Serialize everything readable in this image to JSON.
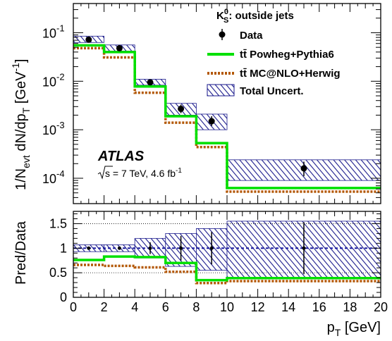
{
  "chart_data": {
    "type": "step",
    "bin_edges": [
      0,
      2,
      4,
      6,
      8,
      10,
      20
    ],
    "x_ticks": [
      0,
      2,
      4,
      6,
      8,
      10,
      12,
      14,
      16,
      18,
      20
    ],
    "xlabel": "p_T [GeV]",
    "xlabel_main": "p",
    "xlabel_sub": "T",
    "xlabel_unit": " [GeV]",
    "main": {
      "ylabel": "1/N_evt dN/dp_T [GeV^-1]",
      "ylabel_parts": {
        "a": "1/N",
        "a_sub": "evt",
        "b": " dN/dp",
        "b_sub": "T",
        "c": " [GeV",
        "c_sup": "-1",
        "d": "]"
      },
      "ylim": [
        3e-05,
        0.4
      ],
      "yscale": "log",
      "y_ticks": [
        {
          "value": 0.1,
          "base": "10",
          "exp": "-1"
        },
        {
          "value": 0.01,
          "base": "10",
          "exp": "-2"
        },
        {
          "value": 0.001,
          "base": "10",
          "exp": "-3"
        },
        {
          "value": 0.0001,
          "base": "10",
          "exp": "-4"
        }
      ],
      "series": [
        {
          "name": "Data",
          "kind": "points",
          "x": [
            1,
            3,
            5,
            7,
            9,
            15
          ],
          "y": [
            0.072,
            0.048,
            0.0095,
            0.0027,
            0.0015,
            0.00016
          ],
          "yerr_low": [
            0.066,
            0.044,
            0.0087,
            0.0022,
            0.0012,
            0.00011
          ],
          "yerr_high": [
            0.078,
            0.052,
            0.0103,
            0.0033,
            0.0019,
            0.00022
          ],
          "color": "#000000"
        },
        {
          "name": "tt Powheg+Pythia6",
          "kind": "step",
          "values": [
            0.055,
            0.04,
            0.0078,
            0.0019,
            0.00053,
            6.3e-05
          ],
          "color": "#00e000"
        },
        {
          "name": "tt MC@NLO+Herwig",
          "kind": "step-dashed",
          "values": [
            0.048,
            0.031,
            0.0058,
            0.0014,
            0.00044,
            5.3e-05
          ],
          "color": "#b35806"
        },
        {
          "name": "Total Uncert.",
          "kind": "band",
          "low": [
            0.063,
            0.042,
            0.0083,
            0.002,
            0.001,
            9e-05
          ],
          "high": [
            0.085,
            0.056,
            0.011,
            0.0035,
            0.0021,
            0.00024
          ],
          "color": "#1a1a8c"
        }
      ]
    },
    "ratio": {
      "ylabel": "Pred/Data",
      "ylim": [
        0,
        1.75
      ],
      "y_ticks": [
        0,
        0.5,
        1,
        1.5
      ],
      "y_tick_labels": [
        "0",
        "0.5",
        "1",
        "1.5"
      ],
      "reference_lines": [
        0.5,
        1,
        1.5
      ],
      "data_points": {
        "x": [
          1,
          3,
          5,
          7,
          9,
          15
        ],
        "y": [
          1,
          1,
          1,
          1,
          1,
          1
        ],
        "err": [
          0.03,
          0.03,
          0.12,
          0.25,
          0.33,
          0.53
        ]
      },
      "powheg": [
        0.76,
        0.83,
        0.82,
        0.7,
        0.35,
        0.39
      ],
      "mcnlo": [
        0.66,
        0.64,
        0.61,
        0.52,
        0.29,
        0.33
      ],
      "band_low": [
        0.93,
        0.93,
        0.8,
        0.63,
        0.55,
        0.4
      ],
      "band_high": [
        1.07,
        1.07,
        1.2,
        1.3,
        1.4,
        1.55
      ]
    },
    "legend": {
      "title_main": "K",
      "title_sup": "0",
      "title_sub": "S",
      "title_rest": ": outside jets",
      "placement": "top-right",
      "entries": [
        {
          "label_pre": "",
          "label": "Data"
        },
        {
          "label_pre": "tt̄",
          "label": " Powheg+Pythia6"
        },
        {
          "label_pre": "tt̄",
          "label": " MC@NLO+Herwig"
        },
        {
          "label_pre": "",
          "label": "Total Uncert."
        }
      ]
    },
    "annotations": {
      "experiment": "ATLAS",
      "energy_pre": "s",
      "energy_text": " = 7 TeV, 4.6 fb",
      "energy_sup": "-1"
    },
    "grid": false
  }
}
